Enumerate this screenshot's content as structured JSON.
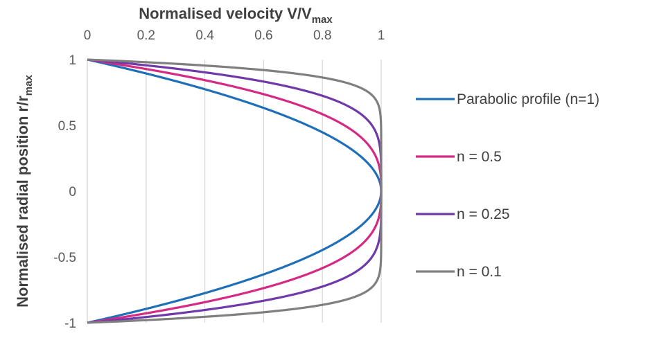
{
  "chart_data": {
    "type": "line",
    "xlabel": {
      "main": "Normalised velocity V/V",
      "sub": "max"
    },
    "ylabel": {
      "main": "Normalised radial position r/r",
      "sub": "max"
    },
    "xlim": [
      0,
      1
    ],
    "ylim": [
      -1,
      1
    ],
    "x_axis_position": "top",
    "grid": "vertical",
    "x_ticks": [
      "0",
      "0.2",
      "0.4",
      "0.6",
      "0.8",
      "1"
    ],
    "y_ticks": [
      "1",
      "0.5",
      "0",
      "-0.5",
      "-1"
    ],
    "legend_position": "right",
    "series": [
      {
        "name": "Parabolic profile (n=1)",
        "exponent": 1,
        "color": "#1f6fb8",
        "points": [
          [
            0,
            1
          ],
          [
            0.19,
            0.9
          ],
          [
            0.36,
            0.8
          ],
          [
            0.51,
            0.7
          ],
          [
            0.64,
            0.6
          ],
          [
            0.75,
            0.5
          ],
          [
            0.84,
            0.4
          ],
          [
            0.91,
            0.3
          ],
          [
            0.96,
            0.2
          ],
          [
            0.99,
            0.1
          ],
          [
            1,
            0
          ],
          [
            0.99,
            -0.1
          ],
          [
            0.96,
            -0.2
          ],
          [
            0.91,
            -0.3
          ],
          [
            0.84,
            -0.4
          ],
          [
            0.75,
            -0.5
          ],
          [
            0.64,
            -0.6
          ],
          [
            0.51,
            -0.7
          ],
          [
            0.36,
            -0.8
          ],
          [
            0.19,
            -0.9
          ],
          [
            0,
            -1
          ]
        ]
      },
      {
        "name": "n = 0.5",
        "exponent": 0.5,
        "color": "#d42a84",
        "points": [
          [
            0,
            1
          ],
          [
            0.44,
            0.9
          ],
          [
            0.6,
            0.8
          ],
          [
            0.71,
            0.7
          ],
          [
            0.8,
            0.6
          ],
          [
            0.87,
            0.5
          ],
          [
            0.92,
            0.4
          ],
          [
            0.95,
            0.3
          ],
          [
            0.98,
            0.2
          ],
          [
            0.99,
            0.1
          ],
          [
            1,
            0
          ],
          [
            0.99,
            -0.1
          ],
          [
            0.98,
            -0.2
          ],
          [
            0.95,
            -0.3
          ],
          [
            0.92,
            -0.4
          ],
          [
            0.87,
            -0.5
          ],
          [
            0.8,
            -0.6
          ],
          [
            0.71,
            -0.7
          ],
          [
            0.6,
            -0.8
          ],
          [
            0.44,
            -0.9
          ],
          [
            0,
            -1
          ]
        ]
      },
      {
        "name": "n = 0.25",
        "exponent": 0.25,
        "color": "#6f3aa8",
        "points": [
          [
            0,
            1
          ],
          [
            0.66,
            0.9
          ],
          [
            0.77,
            0.8
          ],
          [
            0.85,
            0.7
          ],
          [
            0.89,
            0.6
          ],
          [
            0.93,
            0.5
          ],
          [
            0.96,
            0.4
          ],
          [
            0.98,
            0.3
          ],
          [
            0.99,
            0.2
          ],
          [
            1,
            0.1
          ],
          [
            1,
            0
          ],
          [
            1,
            -0.1
          ],
          [
            0.99,
            -0.2
          ],
          [
            0.98,
            -0.3
          ],
          [
            0.96,
            -0.4
          ],
          [
            0.93,
            -0.5
          ],
          [
            0.89,
            -0.6
          ],
          [
            0.85,
            -0.7
          ],
          [
            0.77,
            -0.8
          ],
          [
            0.66,
            -0.9
          ],
          [
            0,
            -1
          ]
        ]
      },
      {
        "name": "n = 0.1",
        "exponent": 0.1,
        "color": "#7f7f7f",
        "points": [
          [
            0,
            1
          ],
          [
            0.85,
            0.9
          ],
          [
            0.9,
            0.8
          ],
          [
            0.94,
            0.7
          ],
          [
            0.96,
            0.6
          ],
          [
            0.97,
            0.5
          ],
          [
            0.98,
            0.4
          ],
          [
            0.99,
            0.3
          ],
          [
            1,
            0.2
          ],
          [
            1,
            0.1
          ],
          [
            1,
            0
          ],
          [
            1,
            -0.1
          ],
          [
            1,
            -0.2
          ],
          [
            0.99,
            -0.3
          ],
          [
            0.98,
            -0.4
          ],
          [
            0.97,
            -0.5
          ],
          [
            0.96,
            -0.6
          ],
          [
            0.94,
            -0.7
          ],
          [
            0.9,
            -0.8
          ],
          [
            0.85,
            -0.9
          ],
          [
            0,
            -1
          ]
        ]
      }
    ]
  }
}
